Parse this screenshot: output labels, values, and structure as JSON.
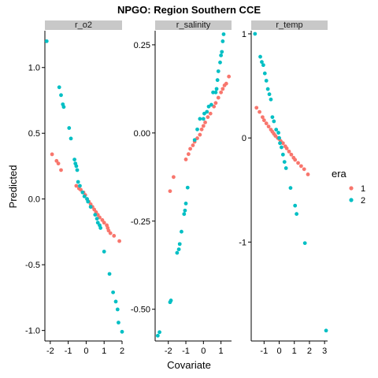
{
  "chart_data": {
    "type": "scatter",
    "title": "NPGO: Region Southern CCE",
    "xlabel": "Covariate",
    "ylabel": "Predicted",
    "legend": {
      "title": "era",
      "entries": [
        {
          "label": "1",
          "color": "#F8766D"
        },
        {
          "label": "2",
          "color": "#00BFC4"
        }
      ]
    },
    "panels": [
      {
        "strip": "r_o2",
        "xlim": [
          -2.3,
          2.0
        ],
        "ylim": [
          -1.08,
          1.28
        ],
        "xticks": [
          -2,
          -1,
          0,
          1,
          2
        ],
        "xtick_labels": [
          "-2",
          "-1",
          "0",
          "1",
          "2"
        ],
        "yticks": [
          1.0,
          0.5,
          0.0,
          -0.5,
          -1.0
        ],
        "ytick_labels": [
          "1.0",
          "0.5",
          "0.0",
          "-0.5",
          "-1.0"
        ],
        "series": [
          {
            "name": "1",
            "color": "#F8766D",
            "points": [
              [
                -1.9,
                0.34
              ],
              [
                -1.65,
                0.29
              ],
              [
                -1.55,
                0.27
              ],
              [
                -1.4,
                0.22
              ],
              [
                -0.55,
                0.1
              ],
              [
                -0.4,
                0.08
              ],
              [
                -0.3,
                0.07
              ],
              [
                -0.15,
                0.05
              ],
              [
                -0.05,
                0.03
              ],
              [
                0.05,
                0.0
              ],
              [
                0.15,
                -0.02
              ],
              [
                0.25,
                -0.04
              ],
              [
                0.35,
                -0.06
              ],
              [
                0.45,
                -0.08
              ],
              [
                0.55,
                -0.1
              ],
              [
                0.65,
                -0.12
              ],
              [
                0.75,
                -0.14
              ],
              [
                0.9,
                -0.16
              ],
              [
                1.0,
                -0.18
              ],
              [
                1.15,
                -0.2
              ],
              [
                1.2,
                -0.22
              ],
              [
                1.25,
                -0.24
              ],
              [
                1.35,
                -0.26
              ],
              [
                1.55,
                -0.28
              ],
              [
                1.85,
                -0.32
              ]
            ]
          },
          {
            "name": "2",
            "color": "#00BFC4",
            "points": [
              [
                -2.2,
                1.2
              ],
              [
                -1.5,
                0.85
              ],
              [
                -1.4,
                0.79
              ],
              [
                -1.3,
                0.72
              ],
              [
                -1.25,
                0.7
              ],
              [
                -0.95,
                0.54
              ],
              [
                -0.85,
                0.46
              ],
              [
                -0.65,
                0.3
              ],
              [
                -0.6,
                0.27
              ],
              [
                -0.55,
                0.25
              ],
              [
                -0.5,
                0.22
              ],
              [
                -0.45,
                0.13
              ],
              [
                -0.35,
                0.1
              ],
              [
                -0.2,
                0.05
              ],
              [
                -0.1,
                0.02
              ],
              [
                0.05,
                0.0
              ],
              [
                0.1,
                -0.02
              ],
              [
                0.25,
                -0.06
              ],
              [
                0.5,
                -0.12
              ],
              [
                0.6,
                -0.15
              ],
              [
                0.65,
                -0.18
              ],
              [
                0.75,
                -0.2
              ],
              [
                0.8,
                -0.22
              ],
              [
                1.0,
                -0.4
              ],
              [
                1.3,
                -0.57
              ],
              [
                1.5,
                -0.71
              ],
              [
                1.65,
                -0.78
              ],
              [
                1.75,
                -0.84
              ],
              [
                1.8,
                -0.94
              ],
              [
                2.0,
                -1.01
              ]
            ]
          }
        ]
      },
      {
        "strip": "r_salinity",
        "xlim": [
          -2.75,
          1.6
        ],
        "ylim": [
          -0.59,
          0.29
        ],
        "xticks": [
          -2,
          -1,
          0,
          1
        ],
        "xtick_labels": [
          "-2",
          "-1",
          "0",
          "1"
        ],
        "yticks": [
          0.25,
          0.0,
          -0.25,
          -0.5
        ],
        "ytick_labels": [
          "0.25",
          "0.00",
          "-0.25",
          "-0.50"
        ],
        "series": [
          {
            "name": "1",
            "color": "#F8766D",
            "points": [
              [
                -1.9,
                -0.165
              ],
              [
                -1.7,
                -0.125
              ],
              [
                -1.0,
                -0.075
              ],
              [
                -0.85,
                -0.06
              ],
              [
                -0.75,
                -0.045
              ],
              [
                -0.6,
                -0.035
              ],
              [
                -0.5,
                -0.025
              ],
              [
                -0.35,
                -0.015
              ],
              [
                -0.2,
                -0.005
              ],
              [
                -0.1,
                0.01
              ],
              [
                0.0,
                0.02
              ],
              [
                0.1,
                0.03
              ],
              [
                0.25,
                0.045
              ],
              [
                0.4,
                0.055
              ],
              [
                0.6,
                0.075
              ],
              [
                0.7,
                0.085
              ],
              [
                0.85,
                0.1
              ],
              [
                1.0,
                0.115
              ],
              [
                1.1,
                0.125
              ],
              [
                1.2,
                0.135
              ],
              [
                1.3,
                0.14
              ],
              [
                1.45,
                0.16
              ]
            ]
          },
          {
            "name": "2",
            "color": "#00BFC4",
            "points": [
              [
                -2.6,
                -0.575
              ],
              [
                -2.5,
                -0.565
              ],
              [
                -1.9,
                -0.48
              ],
              [
                -1.85,
                -0.475
              ],
              [
                -1.5,
                -0.34
              ],
              [
                -1.4,
                -0.33
              ],
              [
                -1.35,
                -0.315
              ],
              [
                -1.25,
                -0.28
              ],
              [
                -1.1,
                -0.23
              ],
              [
                -1.05,
                -0.22
              ],
              [
                -1.0,
                -0.2
              ],
              [
                -0.9,
                -0.155
              ],
              [
                -0.5,
                -0.02
              ],
              [
                -0.35,
                0.01
              ],
              [
                -0.2,
                0.04
              ],
              [
                0.0,
                0.04
              ],
              [
                0.05,
                0.055
              ],
              [
                0.2,
                0.06
              ],
              [
                0.3,
                0.075
              ],
              [
                0.45,
                0.08
              ],
              [
                0.55,
                0.115
              ],
              [
                0.7,
                0.115
              ],
              [
                0.75,
                0.125
              ],
              [
                0.8,
                0.15
              ],
              [
                0.85,
                0.175
              ],
              [
                0.95,
                0.2
              ],
              [
                1.0,
                0.22
              ],
              [
                1.05,
                0.23
              ],
              [
                1.1,
                0.26
              ],
              [
                1.15,
                0.28
              ]
            ]
          }
        ]
      },
      {
        "strip": "r_temp",
        "xlim": [
          -1.85,
          3.2
        ],
        "ylim": [
          -1.95,
          1.03
        ],
        "xticks": [
          -1,
          0,
          1,
          2,
          3
        ],
        "xtick_labels": [
          "-1",
          "0",
          "1",
          "2",
          "3"
        ],
        "yticks": [
          1,
          0,
          -1
        ],
        "ytick_labels": [
          "1",
          "0",
          "-1"
        ],
        "series": [
          {
            "name": "1",
            "color": "#F8766D",
            "points": [
              [
                -1.5,
                0.29
              ],
              [
                -1.3,
                0.25
              ],
              [
                -1.1,
                0.2
              ],
              [
                -1.0,
                0.17
              ],
              [
                -0.85,
                0.14
              ],
              [
                -0.7,
                0.11
              ],
              [
                -0.55,
                0.08
              ],
              [
                -0.45,
                0.06
              ],
              [
                -0.35,
                0.04
              ],
              [
                -0.25,
                0.02
              ],
              [
                -0.1,
                0.0
              ],
              [
                0.0,
                -0.01
              ],
              [
                0.1,
                -0.03
              ],
              [
                0.25,
                -0.05
              ],
              [
                0.4,
                -0.08
              ],
              [
                0.5,
                -0.1
              ],
              [
                0.65,
                -0.13
              ],
              [
                0.8,
                -0.16
              ],
              [
                0.95,
                -0.19
              ],
              [
                1.05,
                -0.21
              ],
              [
                1.25,
                -0.24
              ],
              [
                1.45,
                -0.27
              ],
              [
                1.65,
                -0.3
              ],
              [
                1.9,
                -0.35
              ]
            ]
          },
          {
            "name": "2",
            "color": "#00BFC4",
            "points": [
              [
                -1.6,
                1.0
              ],
              [
                -1.25,
                0.78
              ],
              [
                -1.15,
                0.73
              ],
              [
                -1.05,
                0.7
              ],
              [
                -0.95,
                0.62
              ],
              [
                -0.85,
                0.55
              ],
              [
                -0.75,
                0.47
              ],
              [
                -0.65,
                0.42
              ],
              [
                -0.55,
                0.37
              ],
              [
                -0.45,
                0.2
              ],
              [
                -0.35,
                0.16
              ],
              [
                -0.2,
                0.08
              ],
              [
                -0.05,
                0.05
              ],
              [
                0.0,
                0.0
              ],
              [
                0.05,
                -0.05
              ],
              [
                0.15,
                -0.09
              ],
              [
                0.25,
                -0.16
              ],
              [
                0.35,
                -0.23
              ],
              [
                0.45,
                -0.29
              ],
              [
                0.75,
                -0.48
              ],
              [
                1.05,
                -0.65
              ],
              [
                1.15,
                -0.73
              ],
              [
                1.7,
                -1.01
              ],
              [
                3.1,
                -1.85
              ]
            ]
          }
        ]
      }
    ]
  }
}
